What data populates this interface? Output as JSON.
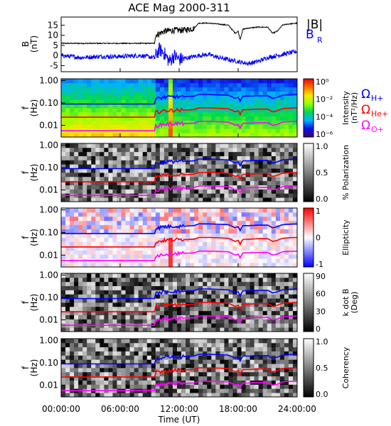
{
  "chart_data": {
    "type": "line",
    "title": "ACE Mag 2000-311",
    "xlabel": "Time (UT)",
    "x_tick_labels": [
      "00:00:00",
      "06:00:00",
      "12:00:00",
      "18:00:00",
      "24:00:00"
    ],
    "x_ticks_hours": [
      0,
      6,
      12,
      18,
      24
    ],
    "xlim_hours": [
      0,
      24
    ],
    "field_panel": {
      "ylabel_top": "B",
      "ylabel_bottom": "(nT)",
      "ylim": [
        -8,
        19
      ],
      "y_ticks": [
        15,
        10,
        5,
        0,
        -5
      ],
      "y_tick_labels": [
        "15",
        "10",
        "5",
        "0",
        "-5"
      ],
      "legend": [
        "|B|",
        "B",
        "R"
      ],
      "series": [
        {
          "name": "|B|",
          "color": "#000000",
          "x": [
            0,
            9.5,
            9.6,
            10.5,
            11.5,
            12.5,
            13.5,
            14.0,
            15.0,
            16.0,
            17.0,
            17.7,
            18.0,
            18.2,
            18.5,
            19.0,
            20.0,
            21.0,
            21.5,
            22.0,
            22.5,
            23.0,
            24.0
          ],
          "values": [
            6,
            6,
            10,
            12,
            12.5,
            12.5,
            13.5,
            16,
            16,
            15.5,
            15,
            11,
            12,
            8,
            13,
            13.5,
            14,
            14,
            11,
            12,
            15,
            15.5,
            16
          ]
        },
        {
          "name": "BR",
          "color": "#0000ff",
          "x": [
            0,
            2,
            4,
            6,
            8,
            9.5,
            10,
            10.5,
            11,
            11.5,
            12,
            13,
            14,
            15,
            16,
            17,
            18,
            19,
            20,
            21,
            22,
            23,
            24
          ],
          "values": [
            0,
            -1,
            -0.5,
            -0.5,
            0,
            -1,
            3,
            1,
            -3,
            0,
            -2,
            -1,
            0,
            0.5,
            -1,
            -2,
            -3,
            -4,
            -3,
            -1,
            0,
            1,
            2
          ]
        }
      ]
    },
    "frequency_panels": [
      {
        "name": "Intensity",
        "colorbar_label_top": "Intensity",
        "colorbar_label_bottom": "(nT²/Hz)",
        "colorbar_ticks": [
          "10⁰",
          "10⁻²",
          "10⁻⁴",
          "10⁻⁶"
        ],
        "colormap": "rainbow"
      },
      {
        "name": "% Polarization",
        "colorbar_label_top": "% Polarization",
        "colorbar_label_bottom": "",
        "colorbar_ticks": [
          "1.0",
          "0.5",
          "0.0"
        ],
        "colormap": "gray"
      },
      {
        "name": "Ellipticity",
        "colorbar_label_top": "Ellipticity",
        "colorbar_label_bottom": "",
        "colorbar_ticks": [
          "1",
          "0",
          "-1"
        ],
        "colormap": "bluewhitered"
      },
      {
        "name": "k dot B",
        "colorbar_label_top": "k dot B",
        "colorbar_label_bottom": "(Deg)",
        "colorbar_ticks": [
          "90",
          "60",
          "30",
          "0"
        ],
        "colormap": "gray"
      },
      {
        "name": "Coherency",
        "colorbar_label_top": "Coherency",
        "colorbar_label_bottom": "",
        "colorbar_ticks": [
          "1.0",
          "0.5",
          "0.0"
        ],
        "colormap": "gray"
      }
    ],
    "frequency_axis": {
      "ylabel_top": "f",
      "ylabel_bottom": "(Hz)",
      "scale": "log",
      "ylim": [
        0.003,
        1.2
      ],
      "y_ticks": [
        1,
        0.1,
        0.01
      ],
      "y_tick_labels": [
        "1.00",
        "0.10",
        "0.01"
      ]
    },
    "gyrofrequency_legend": [
      {
        "symbol": "Ω",
        "subscript": "H+",
        "color": "#0000ff"
      },
      {
        "symbol": "Ω",
        "subscript": "He+",
        "color": "#ff0000"
      },
      {
        "symbol": "Ω",
        "subscript": "O+",
        "color": "#ff00ff"
      }
    ],
    "gyrofrequency_series": [
      {
        "name": "H+",
        "color": "#0000ff",
        "x": [
          0,
          9.5,
          9.6,
          10.5,
          11.5,
          12.5,
          13.5,
          14.0,
          15.0,
          16.0,
          17.0,
          17.7,
          18.0,
          18.2,
          18.5,
          19.0,
          20.0,
          21.0,
          21.5,
          22.0,
          22.5,
          23.0,
          24.0
        ],
        "values": [
          0.09,
          0.09,
          0.15,
          0.18,
          0.19,
          0.19,
          0.2,
          0.24,
          0.24,
          0.23,
          0.22,
          0.16,
          0.18,
          0.12,
          0.2,
          0.2,
          0.21,
          0.21,
          0.16,
          0.18,
          0.22,
          0.23,
          0.24
        ]
      },
      {
        "name": "He+",
        "color": "#ff0000",
        "x": [
          0,
          9.5,
          9.6,
          10.5,
          11.5,
          12.5,
          13.5,
          14.0,
          15.0,
          16.0,
          17.0,
          17.7,
          18.0,
          18.2,
          18.5,
          19.0,
          20.0,
          21.0,
          21.5,
          22.0,
          22.5,
          23.0,
          24.0
        ],
        "values": [
          0.023,
          0.023,
          0.038,
          0.045,
          0.048,
          0.048,
          0.05,
          0.06,
          0.06,
          0.058,
          0.055,
          0.04,
          0.045,
          0.03,
          0.05,
          0.05,
          0.053,
          0.053,
          0.04,
          0.045,
          0.055,
          0.058,
          0.06
        ]
      },
      {
        "name": "O+",
        "color": "#ff00ff",
        "x": [
          0,
          9.5,
          9.6,
          10.5,
          11.5,
          12.5,
          13.5,
          14.0,
          15.0,
          16.0,
          17.0,
          17.7,
          18.0,
          18.2,
          18.5,
          19.0,
          20.0,
          21.0,
          21.5,
          22.0,
          22.5,
          23.0,
          24.0
        ],
        "values": [
          0.0057,
          0.0057,
          0.0095,
          0.011,
          0.012,
          0.012,
          0.0125,
          0.015,
          0.015,
          0.0145,
          0.014,
          0.01,
          0.011,
          0.0075,
          0.0125,
          0.0125,
          0.013,
          0.013,
          0.01,
          0.011,
          0.014,
          0.0145,
          0.015
        ]
      }
    ]
  }
}
